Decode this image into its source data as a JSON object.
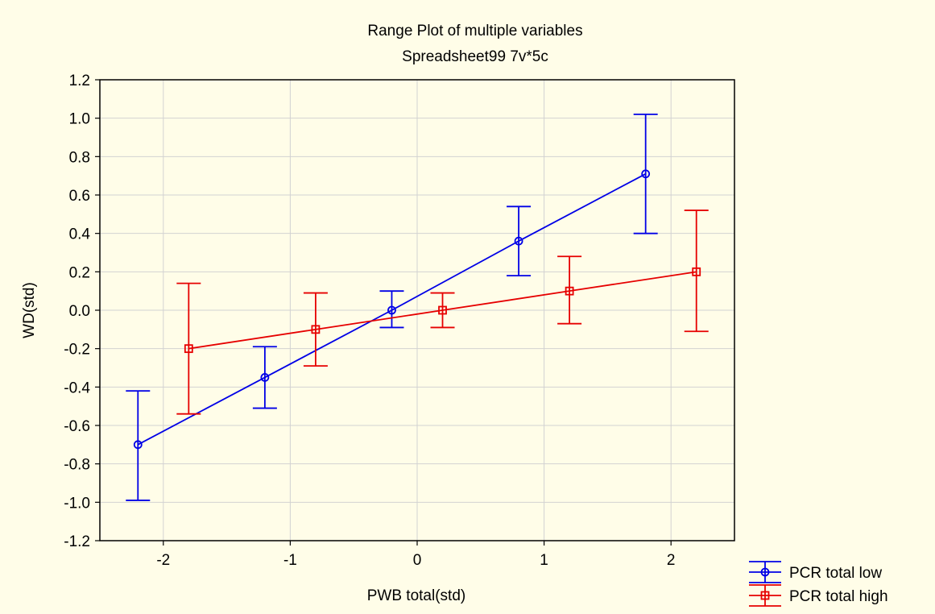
{
  "chart_data": {
    "type": "line",
    "title": "Range Plot of multiple variables",
    "subtitle": "Spreadsheet99 7v*5c",
    "xlabel": "PWB total(std)",
    "ylabel": "WD(std)",
    "xlim": [
      -2.5,
      2.5
    ],
    "ylim": [
      -1.2,
      1.2
    ],
    "xticks": [
      -2,
      -1,
      0,
      1,
      2
    ],
    "xtick_labels": [
      "-2",
      "-1",
      "0",
      "1",
      "2"
    ],
    "yticks": [
      -1.2,
      -1.0,
      -0.8,
      -0.6,
      -0.4,
      -0.2,
      0.0,
      0.2,
      0.4,
      0.6,
      0.8,
      1.0,
      1.2
    ],
    "ytick_labels": [
      "-1.2",
      "-1.0",
      "-0.8",
      "-0.6",
      "-0.4",
      "-0.2",
      "0.0",
      "0.2",
      "0.4",
      "0.6",
      "0.8",
      "1.0",
      "1.2"
    ],
    "grid": true,
    "legend_position": "bottom-right, outside plot",
    "series": [
      {
        "name": "PCR total low",
        "color": "#0000e6",
        "marker": "circle",
        "x": [
          -2.2,
          -1.2,
          -0.2,
          0.8,
          1.8
        ],
        "y": [
          -0.7,
          -0.35,
          0.0,
          0.36,
          0.71
        ],
        "low": [
          -0.99,
          -0.51,
          -0.09,
          0.18,
          0.4
        ],
        "high": [
          -0.42,
          -0.19,
          0.1,
          0.54,
          1.02
        ]
      },
      {
        "name": "PCR total high",
        "color": "#e60000",
        "marker": "square",
        "x": [
          -1.8,
          -0.8,
          0.2,
          1.2,
          2.2
        ],
        "y": [
          -0.2,
          -0.1,
          0.0,
          0.1,
          0.2
        ],
        "low": [
          -0.54,
          -0.29,
          -0.09,
          -0.07,
          -0.11
        ],
        "high": [
          0.14,
          0.09,
          0.09,
          0.28,
          0.52
        ]
      }
    ]
  }
}
